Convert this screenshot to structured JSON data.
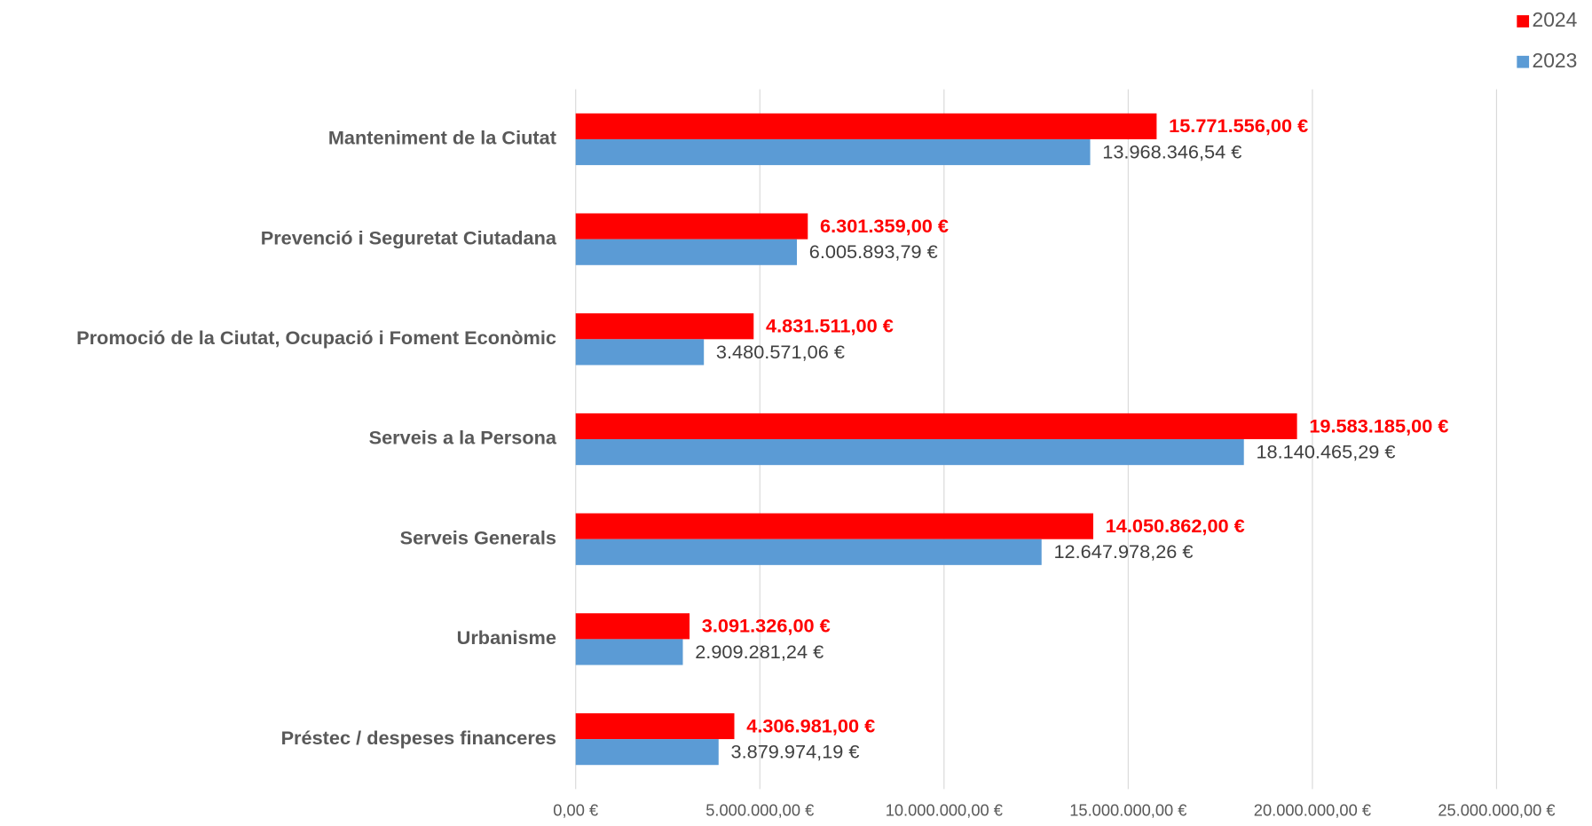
{
  "chart_data": {
    "type": "barh",
    "categories": [
      "Manteniment de la Ciutat",
      "Prevenció i Seguretat Ciutadana",
      "Promoció de la Ciutat, Ocupació i Foment Econòmic",
      "Serveis a la Persona",
      "Serveis Generals",
      "Urbanisme",
      "Préstec / despeses financeres"
    ],
    "series": [
      {
        "name": "2024",
        "color": "#ff0000",
        "values": [
          15771556.0,
          6301359.0,
          4831511.0,
          19583185.0,
          14050862.0,
          3091326.0,
          4306981.0
        ],
        "value_labels": [
          "15.771.556,00 €",
          "6.301.359,00 €",
          "4.831.511,00 €",
          "19.583.185,00 €",
          "14.050.862,00 €",
          "3.091.326,00 €",
          "4.306.981,00 €"
        ]
      },
      {
        "name": "2023",
        "color": "#5b9bd5",
        "values": [
          13968346.54,
          6005893.79,
          3480571.06,
          18140465.29,
          12647978.26,
          2909281.24,
          3879974.19
        ],
        "value_labels": [
          "13.968.346,54 €",
          "6.005.893,79 €",
          "3.480.571,06 €",
          "18.140.465,29 €",
          "12.647.978,26 €",
          "2.909.281,24 €",
          "3.879.974,19 €"
        ]
      }
    ],
    "xlim": [
      0,
      25000000
    ],
    "xticks": [
      {
        "value": 0,
        "label": "0,00 €"
      },
      {
        "value": 5000000,
        "label": "5.000.000,00 €"
      },
      {
        "value": 10000000,
        "label": "10.000.000,00 €"
      },
      {
        "value": 15000000,
        "label": "15.000.000,00 €"
      },
      {
        "value": 20000000,
        "label": "20.000.000,00 €"
      },
      {
        "value": 25000000,
        "label": "25.000.000,00 €"
      }
    ],
    "grid": true,
    "legend": "top-right"
  }
}
